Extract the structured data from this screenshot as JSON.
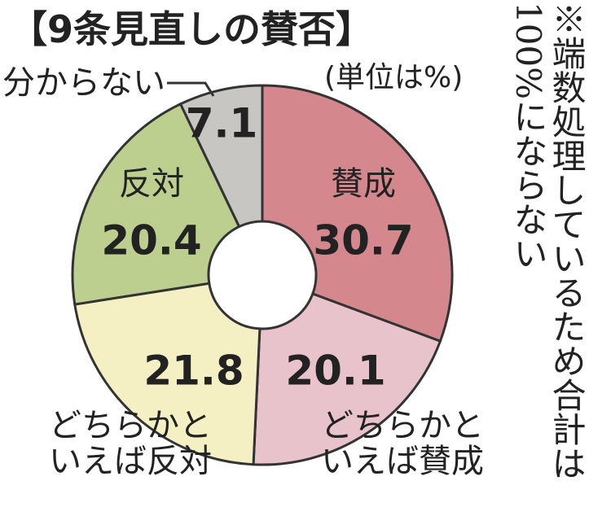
{
  "chart_data": {
    "type": "donut",
    "title": "【9条見直しの賛否】",
    "subtitle": "(単位は%)",
    "annotation": "※端数処理しているため合計は100%にならない",
    "categories": [
      "賛成",
      "どちらかと\nいえば賛成",
      "どちらかと\nいえば反対",
      "反対",
      "分からない"
    ],
    "values": [
      30.7,
      20.1,
      21.8,
      20.4,
      7.1
    ],
    "colors": [
      "#d4878c",
      "#e9c3cb",
      "#f4f0c4",
      "#bccf8f",
      "#c8c6c2"
    ]
  }
}
